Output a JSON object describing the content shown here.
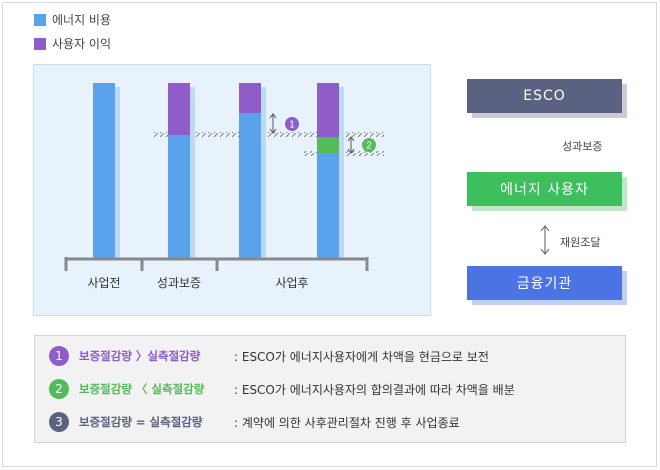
{
  "colors": {
    "energy_cost": "#5aa3ec",
    "energy_cost_shadow": "#bcdaf6",
    "user_profit": "#8f5cc8",
    "saving_green": "#55bb5a",
    "esco_box": "#5b6180",
    "user_box": "#3dbf5d",
    "bank_box": "#4a73e3",
    "num1": "#8f5cc8",
    "num2": "#55bb5a",
    "num3": "#5b6180"
  },
  "legend": [
    {
      "label": "에너지 비용",
      "color": "#5aa3ec"
    },
    {
      "label": "사용자 이익",
      "color": "#8f5cc8"
    }
  ],
  "chart_data": {
    "type": "bar",
    "stacked": true,
    "groups": [
      "사업전",
      "성과보증",
      "사업후"
    ],
    "bars": [
      {
        "group": "사업전",
        "energy_cost": 100,
        "saving": 0,
        "profit": 0
      },
      {
        "group": "성과보증",
        "energy_cost": 74,
        "saving": 0,
        "profit": 26
      },
      {
        "group": "사업후",
        "energy_cost": 84,
        "saving": 0,
        "profit": 16
      },
      {
        "group": "사업후",
        "energy_cost": 63,
        "saving": 8,
        "profit": 29
      }
    ],
    "markers": [
      "1",
      "2"
    ]
  },
  "flow": {
    "esco": "ESCO",
    "guarantee": "성과보증",
    "user": "에너지 사용자",
    "funding": "재원조달",
    "bank": "금융기관"
  },
  "notes": [
    {
      "num": "1",
      "cond": "보증절감량 〉실측절감량",
      "desc": ": ESCO가 에너지사용자에게 차액을 현금으로 보전",
      "color": "#8f5cc8"
    },
    {
      "num": "2",
      "cond": "보증절감량 〈 실측절감량",
      "desc": ": ESCO가 에너지사용자의 합의결과에 따라 차액을 배분",
      "color": "#55bb5a"
    },
    {
      "num": "3",
      "cond": "보증절감량 = 실측절감량",
      "desc": ": 계약에 의한 사후관리절차 진행 후 사업종료",
      "color": "#5b6180"
    }
  ]
}
